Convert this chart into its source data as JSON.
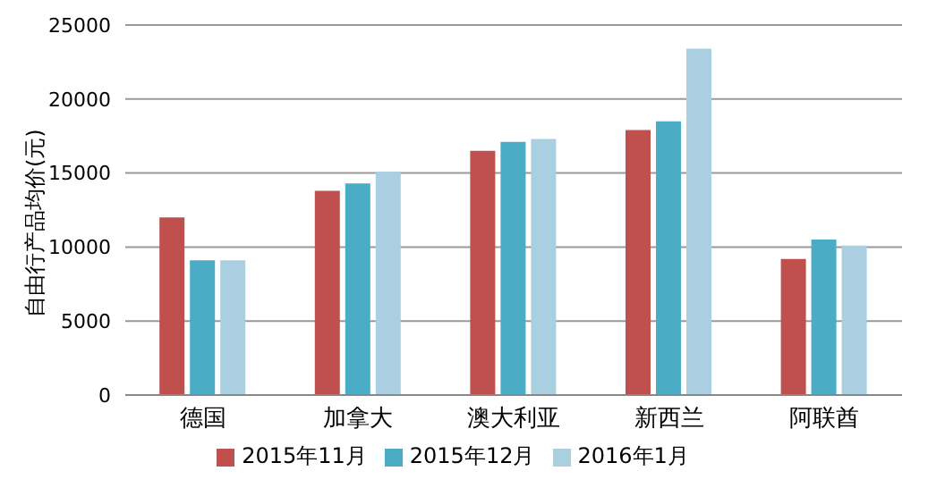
{
  "chart_data": {
    "type": "bar",
    "ylabel": "自由行产品均价(元)",
    "categories": [
      "德国",
      "加拿大",
      "澳大利亚",
      "新西兰",
      "阿联酋"
    ],
    "series": [
      {
        "name": "2015年11月",
        "color": "#c0504d",
        "values": [
          12000,
          13800,
          16500,
          17900,
          9200
        ]
      },
      {
        "name": "2015年12月",
        "color": "#4bacc6",
        "values": [
          9100,
          14300,
          17100,
          18500,
          10500
        ]
      },
      {
        "name": "2016年1月",
        "color": "#a9cfe0",
        "values": [
          9100,
          15100,
          17300,
          23400,
          10100
        ]
      }
    ],
    "ylim": [
      0,
      25000
    ],
    "yticks": [
      0,
      5000,
      10000,
      15000,
      20000,
      25000
    ],
    "grid": "y",
    "legend": "bottom"
  }
}
